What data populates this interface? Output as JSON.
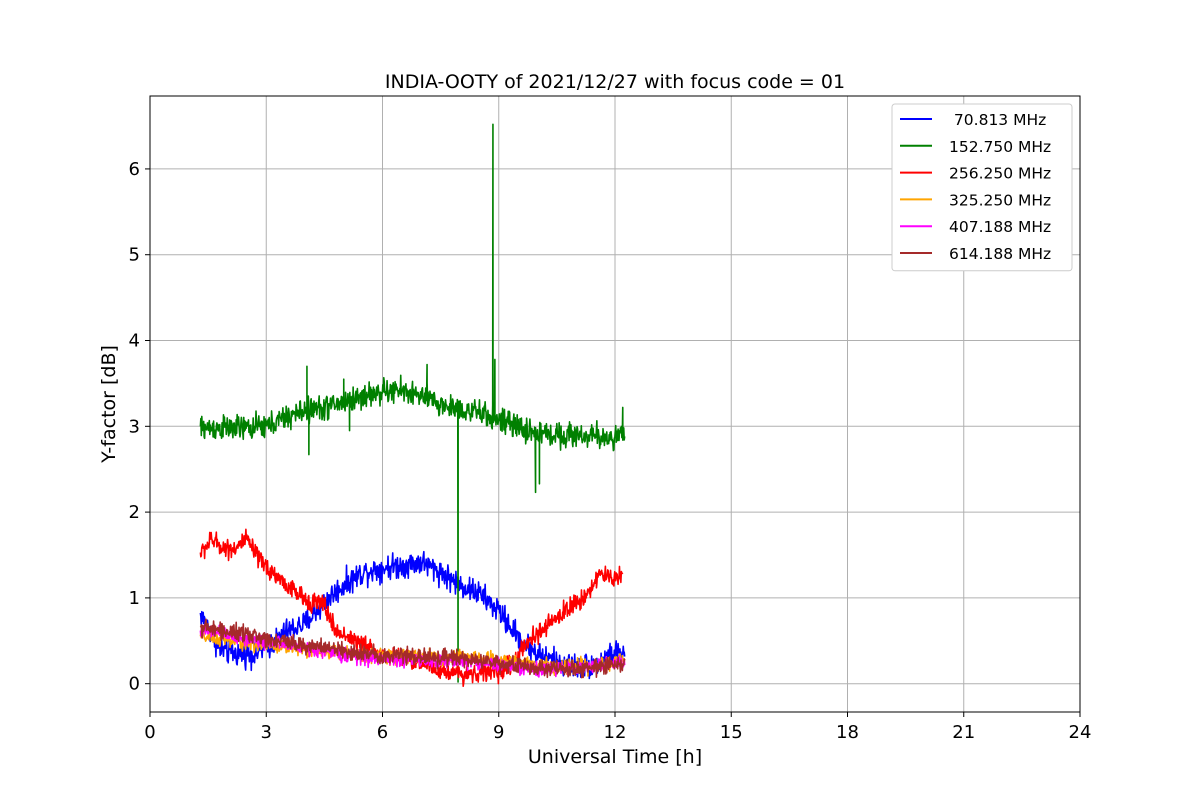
{
  "chart_data": {
    "type": "line",
    "title": "INDIA-OOTY of 2021/12/27 with focus code = 01",
    "xlabel": "Universal Time [h]",
    "ylabel": "Y-factor [dB]",
    "xlim": [
      0,
      24
    ],
    "ylim": [
      -0.33,
      6.85
    ],
    "xticks": [
      "0",
      "3",
      "6",
      "9",
      "12",
      "15",
      "18",
      "21",
      "24"
    ],
    "yticks": [
      "0",
      "1",
      "2",
      "3",
      "4",
      "5",
      "6"
    ],
    "grid": true,
    "legend_position": "top-right",
    "series": [
      {
        "name": " 70.813 MHz",
        "color": "#0000ff",
        "x": [
          1.3,
          1.5,
          1.8,
          2.2,
          2.7,
          3.1,
          3.5,
          4.0,
          4.5,
          5.0,
          5.5,
          6.0,
          6.5,
          7.0,
          7.5,
          8.0,
          8.5,
          9.0,
          9.4,
          9.7,
          10.0,
          10.5,
          11.0,
          11.5,
          12.0,
          12.25
        ],
        "y": [
          0.8,
          0.65,
          0.4,
          0.35,
          0.35,
          0.45,
          0.6,
          0.7,
          0.95,
          1.15,
          1.3,
          1.35,
          1.38,
          1.42,
          1.3,
          1.15,
          1.05,
          0.85,
          0.6,
          0.45,
          0.35,
          0.25,
          0.2,
          0.22,
          0.35,
          0.35
        ],
        "noise": 0.09
      },
      {
        "name": "152.750 MHz",
        "color": "#008000",
        "x": [
          1.3,
          2.0,
          2.5,
          3.0,
          3.5,
          4.0,
          4.5,
          5.0,
          5.5,
          6.0,
          6.5,
          7.0,
          7.5,
          8.0,
          8.5,
          9.0,
          9.5,
          10.0,
          10.5,
          11.0,
          11.5,
          12.0,
          12.25
        ],
        "y": [
          2.98,
          2.98,
          2.98,
          3.0,
          3.1,
          3.18,
          3.22,
          3.28,
          3.35,
          3.4,
          3.42,
          3.35,
          3.25,
          3.2,
          3.15,
          3.08,
          2.98,
          2.92,
          2.9,
          2.9,
          2.88,
          2.87,
          2.9
        ],
        "noise": 0.09,
        "spikes": [
          [
            4.05,
            3.7
          ],
          [
            4.1,
            2.67
          ],
          [
            5.0,
            3.55
          ],
          [
            5.15,
            2.95
          ],
          [
            7.15,
            3.72
          ],
          [
            7.95,
            0.02
          ],
          [
            8.85,
            6.52
          ],
          [
            8.9,
            3.78
          ],
          [
            9.95,
            2.23
          ],
          [
            10.05,
            2.33
          ],
          [
            12.2,
            3.22
          ]
        ]
      },
      {
        "name": "256.250 MHz",
        "color": "#ff0000",
        "x": [
          1.3,
          1.6,
          1.9,
          2.2,
          2.5,
          2.8,
          3.2,
          3.6,
          4.0,
          4.5,
          4.8,
          5.0,
          5.5,
          6.0,
          6.5,
          7.0,
          7.5,
          8.0,
          8.5,
          9.0,
          9.4,
          9.8,
          10.2,
          10.7,
          11.2,
          11.6,
          11.9,
          12.2
        ],
        "y": [
          1.52,
          1.68,
          1.58,
          1.58,
          1.68,
          1.45,
          1.28,
          1.12,
          0.98,
          0.92,
          0.6,
          0.58,
          0.45,
          0.35,
          0.3,
          0.25,
          0.15,
          0.12,
          0.12,
          0.15,
          0.25,
          0.5,
          0.65,
          0.85,
          1.0,
          1.28,
          1.22,
          1.28
        ],
        "noise": 0.07
      },
      {
        "name": "325.250 MHz",
        "color": "#ffa500",
        "x": [
          1.3,
          2.5,
          4.0,
          5.5,
          7.0,
          8.5,
          10.0,
          11.5,
          12.25
        ],
        "y": [
          0.55,
          0.47,
          0.4,
          0.33,
          0.32,
          0.3,
          0.22,
          0.2,
          0.28
        ],
        "noise": 0.05
      },
      {
        "name": "407.188 MHz",
        "color": "#ff00ff",
        "x": [
          1.3,
          2.5,
          4.0,
          5.5,
          7.0,
          8.5,
          10.0,
          11.5,
          12.25
        ],
        "y": [
          0.62,
          0.52,
          0.42,
          0.3,
          0.27,
          0.25,
          0.16,
          0.2,
          0.28
        ],
        "noise": 0.05
      },
      {
        "name": "614.188 MHz",
        "color": "#a52a2a",
        "x": [
          1.3,
          2.5,
          4.0,
          5.5,
          7.0,
          8.5,
          10.0,
          11.0,
          12.25
        ],
        "y": [
          0.66,
          0.57,
          0.45,
          0.35,
          0.32,
          0.27,
          0.18,
          0.17,
          0.24
        ],
        "noise": 0.06
      }
    ]
  }
}
